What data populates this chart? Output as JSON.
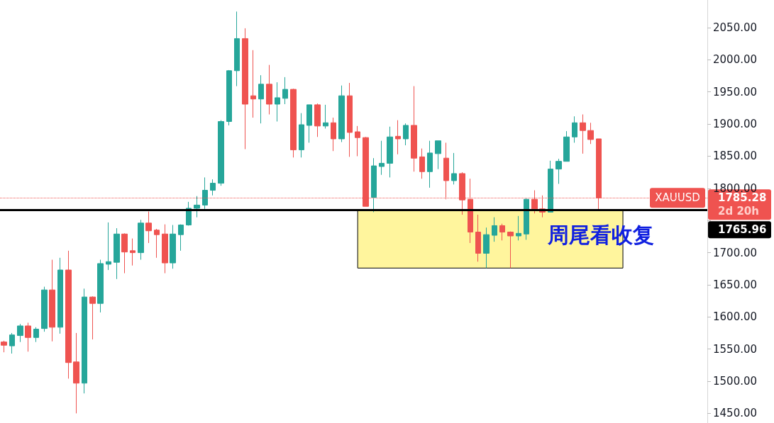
{
  "chart_data": {
    "type": "candlestick",
    "categories": [
      null,
      null,
      null,
      null,
      null,
      null,
      null,
      null,
      null,
      null,
      null,
      null,
      null,
      null,
      null,
      null,
      null,
      null,
      null,
      null,
      null,
      null,
      null,
      null,
      null,
      null,
      null,
      null,
      null,
      null,
      null,
      null,
      null,
      null,
      null,
      null,
      null,
      null,
      null,
      null,
      null,
      null,
      null,
      null,
      null,
      null,
      null,
      null,
      null,
      null,
      null,
      null,
      null,
      null,
      null,
      null,
      null,
      null,
      null,
      null,
      null,
      null,
      null,
      null,
      null,
      null,
      null,
      null,
      null,
      null,
      null,
      null,
      null,
      null,
      null,
      null,
      null,
      null,
      null,
      null,
      null,
      null,
      null,
      null,
      null,
      null,
      null,
      null
    ],
    "ohlc": [
      [
        1561,
        1563,
        1545,
        1556
      ],
      [
        1555,
        1575,
        1543,
        1572
      ],
      [
        1571,
        1589,
        1561,
        1586
      ],
      [
        1586,
        1591,
        1546,
        1568
      ],
      [
        1568,
        1584,
        1561,
        1581
      ],
      [
        1582,
        1647,
        1577,
        1642
      ],
      [
        1642,
        1689,
        1562,
        1584
      ],
      [
        1584,
        1692,
        1574,
        1673
      ],
      [
        1673,
        1703,
        1504,
        1529
      ],
      [
        1530,
        1575,
        1450,
        1497
      ],
      [
        1497,
        1644,
        1481,
        1631
      ],
      [
        1631,
        1632,
        1565,
        1621
      ],
      [
        1621,
        1689,
        1607,
        1683
      ],
      [
        1682,
        1747,
        1673,
        1686
      ],
      [
        1685,
        1738,
        1659,
        1729
      ],
      [
        1729,
        1730,
        1668,
        1701
      ],
      [
        1703,
        1722,
        1680,
        1700
      ],
      [
        1700,
        1751,
        1689,
        1746
      ],
      [
        1746,
        1764,
        1715,
        1734
      ],
      [
        1735,
        1737,
        1692,
        1728
      ],
      [
        1729,
        1744,
        1668,
        1684
      ],
      [
        1684,
        1743,
        1675,
        1729
      ],
      [
        1728,
        1744,
        1703,
        1743
      ],
      [
        1743,
        1779,
        1742,
        1769
      ],
      [
        1769,
        1788,
        1755,
        1774
      ],
      [
        1774,
        1817,
        1768,
        1797
      ],
      [
        1797,
        1814,
        1789,
        1808
      ],
      [
        1808,
        1906,
        1804,
        1904
      ],
      [
        1904,
        1984,
        1898,
        1983
      ],
      [
        1983,
        2075,
        1959,
        2033
      ],
      [
        2033,
        2049,
        1861,
        1931
      ],
      [
        1944,
        2015,
        1910,
        1939
      ],
      [
        1939,
        1976,
        1901,
        1962
      ],
      [
        1962,
        1992,
        1915,
        1931
      ],
      [
        1931,
        1965,
        1904,
        1941
      ],
      [
        1940,
        1973,
        1931,
        1954
      ],
      [
        1954,
        1955,
        1848,
        1860
      ],
      [
        1860,
        1917,
        1848,
        1899
      ],
      [
        1898,
        1930,
        1871,
        1930
      ],
      [
        1930,
        1932,
        1880,
        1897
      ],
      [
        1897,
        1930,
        1893,
        1902
      ],
      [
        1902,
        1910,
        1858,
        1877
      ],
      [
        1877,
        1960,
        1872,
        1944
      ],
      [
        1944,
        1964,
        1849,
        1887
      ],
      [
        1888,
        1897,
        1850,
        1879
      ],
      [
        1879,
        1880,
        1772,
        1772
      ],
      [
        1786,
        1847,
        1763,
        1835
      ],
      [
        1834,
        1874,
        1821,
        1839
      ],
      [
        1839,
        1896,
        1817,
        1880
      ],
      [
        1881,
        1906,
        1853,
        1877
      ],
      [
        1877,
        1901,
        1867,
        1898
      ],
      [
        1898,
        1959,
        1826,
        1847
      ],
      [
        1849,
        1862,
        1815,
        1826
      ],
      [
        1826,
        1874,
        1801,
        1855
      ],
      [
        1854,
        1874,
        1830,
        1874
      ],
      [
        1847,
        1871,
        1783,
        1812
      ],
      [
        1812,
        1855,
        1806,
        1823
      ],
      [
        1823,
        1825,
        1759,
        1782
      ],
      [
        1783,
        1815,
        1715,
        1732
      ],
      [
        1732,
        1759,
        1686,
        1699
      ],
      [
        1699,
        1739,
        1676,
        1728
      ],
      [
        1727,
        1755,
        1717,
        1742
      ],
      [
        1742,
        1745,
        1719,
        1732
      ],
      [
        1732,
        1733,
        1676,
        1726
      ],
      [
        1726,
        1757,
        1719,
        1730
      ],
      [
        1729,
        1784,
        1720,
        1783
      ],
      [
        1783,
        1797,
        1761,
        1768
      ],
      [
        1768,
        1789,
        1755,
        1763
      ],
      [
        1763,
        1843,
        1763,
        1830
      ],
      [
        1830,
        1846,
        1807,
        1842
      ],
      [
        1842,
        1889,
        1842,
        1880
      ],
      [
        1880,
        1912,
        1871,
        1902
      ],
      [
        1902,
        1915,
        1854,
        1890
      ],
      [
        1890,
        1902,
        1869,
        1876
      ],
      [
        1877,
        1877,
        1766,
        1785.28
      ],
      null,
      null,
      null,
      null,
      null,
      null,
      null,
      null,
      null,
      null,
      null,
      null,
      null
    ],
    "colors": [
      "#ef5350",
      "#26a69a",
      "#26a69a",
      "#ef5350",
      "#26a69a",
      "#26a69a",
      "#ef5350",
      "#26a69a",
      "#ef5350",
      "#ef5350",
      "#26a69a",
      "#ef5350",
      "#26a69a",
      "#26a69a",
      "#26a69a",
      "#ef5350",
      "#ef5350",
      "#26a69a",
      "#ef5350",
      "#ef5350",
      "#ef5350",
      "#26a69a",
      "#26a69a",
      "#26a69a",
      "#26a69a",
      "#26a69a",
      "#26a69a",
      "#26a69a",
      "#26a69a",
      "#26a69a",
      "#ef5350",
      "#ef5350",
      "#26a69a",
      "#ef5350",
      "#26a69a",
      "#26a69a",
      "#ef5350",
      "#26a69a",
      "#26a69a",
      "#ef5350",
      "#26a69a",
      "#ef5350",
      "#26a69a",
      "#ef5350",
      "#ef5350",
      "#ef5350",
      "#26a69a",
      "#26a69a",
      "#26a69a",
      "#ef5350",
      "#26a69a",
      "#ef5350",
      "#ef5350",
      "#26a69a",
      "#26a69a",
      "#ef5350",
      "#26a69a",
      "#ef5350",
      "#ef5350",
      "#ef5350",
      "#26a69a",
      "#26a69a",
      "#ef5350",
      "#ef5350",
      "#26a69a",
      "#26a69a",
      "#ef5350",
      "#ef5350",
      "#26a69a",
      "#26a69a",
      "#26a69a",
      "#26a69a",
      "#ef5350",
      "#ef5350",
      "#ef5350",
      null,
      null,
      null,
      null,
      null,
      null,
      null,
      null,
      null,
      null,
      null,
      null,
      null
    ],
    "ylim": [
      1435,
      2093
    ],
    "yticks": [
      {
        "value": 1450,
        "label": "1450.00"
      },
      {
        "value": 1500,
        "label": "1500.00"
      },
      {
        "value": 1550,
        "label": "1550.00"
      },
      {
        "value": 1600,
        "label": "1600.00"
      },
      {
        "value": 1650,
        "label": "1650.00"
      },
      {
        "value": 1700,
        "label": "1700.00"
      },
      {
        "value": 1750,
        "label": null
      },
      {
        "value": 1800,
        "label": "1800.00"
      },
      {
        "value": 1850,
        "label": "1850.00"
      },
      {
        "value": 1900,
        "label": "1900.00"
      },
      {
        "value": 1950,
        "label": "1950.00"
      },
      {
        "value": 2000,
        "label": "2000.00"
      },
      {
        "value": 2050,
        "label": "2050.00"
      }
    ],
    "ref_lines": [
      {
        "axis": "y",
        "value": 1785.28,
        "label": "1785.28",
        "color": "#ef5350",
        "line_style": "dotted"
      },
      {
        "axis": "y",
        "value": 1765.96,
        "label": "1765.96",
        "color": "#000000",
        "line_style": "solid"
      }
    ],
    "bands": [
      {
        "axis": "y",
        "from": 1676,
        "to": 1765.96,
        "color": "#fff59d"
      }
    ],
    "annotations": [
      "XAUUSD",
      "2d 20h",
      "周尾看收复"
    ],
    "grid": false,
    "tick_labels": "y"
  }
}
